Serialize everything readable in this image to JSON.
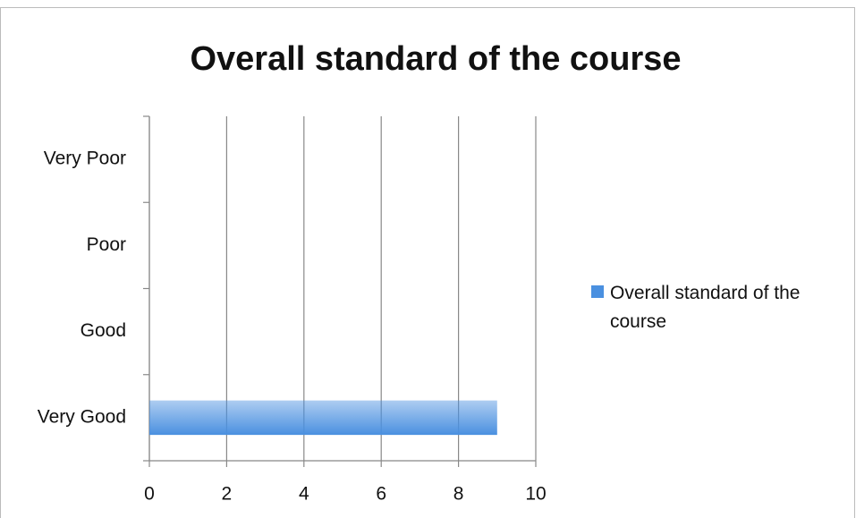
{
  "chart_data": {
    "type": "barh",
    "title": "Overall standard of the course",
    "categories": [
      "Very Poor",
      "Poor",
      "Good",
      "Very Good"
    ],
    "series": [
      {
        "name": "Overall standard of the course",
        "color": "#4a90e0",
        "values": [
          0,
          0,
          0,
          9
        ]
      }
    ],
    "xlim": [
      0,
      10
    ],
    "xticks": [
      0,
      2,
      4,
      6,
      8,
      10
    ],
    "grid": true,
    "legend": "right"
  }
}
